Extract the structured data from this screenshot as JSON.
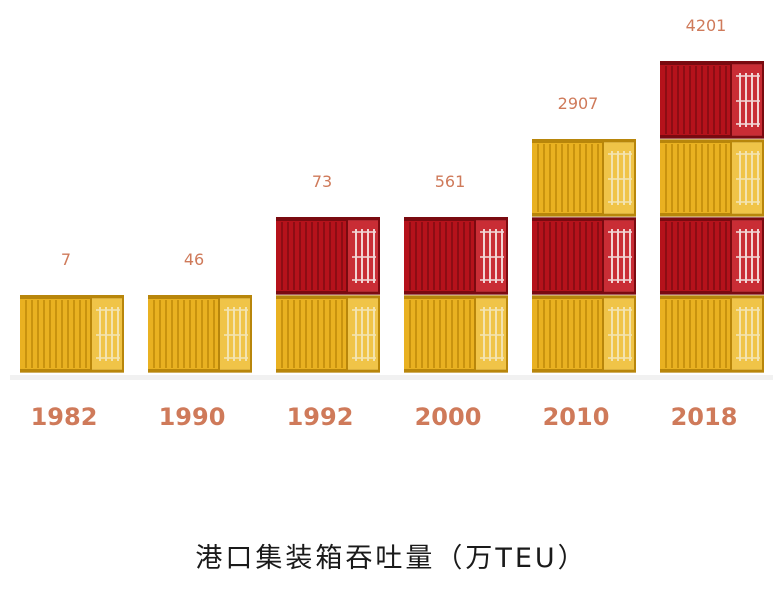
{
  "chart_data": {
    "type": "bar",
    "title": "港口集装箱吞吐量（万TEU）",
    "categories": [
      "1982",
      "1990",
      "1992",
      "2000",
      "2010",
      "2018"
    ],
    "values": [
      7,
      46,
      73,
      561,
      2907,
      4201
    ],
    "value_labels": [
      "7",
      "46",
      "73",
      "561",
      "2907",
      "4201"
    ],
    "stacks": [
      [
        "yellow"
      ],
      [
        "yellow"
      ],
      [
        "yellow",
        "red"
      ],
      [
        "yellow",
        "red"
      ],
      [
        "yellow",
        "red",
        "yellow"
      ],
      [
        "yellow",
        "red",
        "yellow",
        "red"
      ]
    ],
    "grid": false,
    "legend": "none"
  },
  "colors": {
    "yellow": "#e9b121",
    "red": "#b5121b",
    "label": "#cf7a5a",
    "title": "#1a1a1a"
  }
}
